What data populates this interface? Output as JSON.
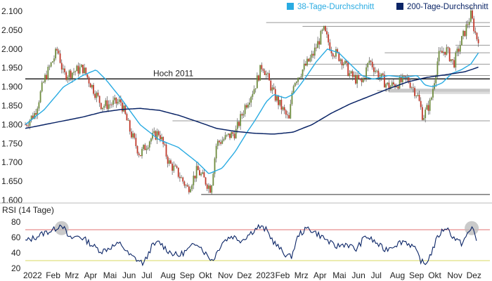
{
  "chart_data": [
    {
      "type": "candlestick-line",
      "panel": "price",
      "ylim": [
        1.6,
        2.1
      ],
      "y_ticks": [
        "1.600",
        "1.650",
        "1.700",
        "1.750",
        "1.800",
        "1.850",
        "1.900",
        "1.950",
        "2.000",
        "2.050",
        "2.100"
      ],
      "x_tick_labels": [
        "2022",
        "Feb",
        "Mrz",
        "Apr",
        "Mai",
        "Jun",
        "Jul",
        "Aug",
        "Sep",
        "Okt",
        "Nov",
        "Dez",
        "2023",
        "Feb",
        "Mrz",
        "Apr",
        "Mai",
        "Jun",
        "Jul",
        "Aug",
        "Sep",
        "Okt",
        "Nov",
        "Dez"
      ],
      "legend": [
        {
          "name": "38-Tage-Durchschnitt",
          "color": "#29abe2"
        },
        {
          "name": "200-Tage-Durchschnitt",
          "color": "#0a2466"
        }
      ],
      "annotation": "Hoch 2011",
      "hoch_2011_level": 1.921,
      "price_close_monthly": [
        {
          "m": 0,
          "v": 1.8
        },
        {
          "m": 0.5,
          "v": 1.83
        },
        {
          "m": 1,
          "v": 1.92
        },
        {
          "m": 1.7,
          "v": 2.0
        },
        {
          "m": 2,
          "v": 1.93
        },
        {
          "m": 3,
          "v": 1.95
        },
        {
          "m": 3.5,
          "v": 1.9
        },
        {
          "m": 4,
          "v": 1.85
        },
        {
          "m": 5,
          "v": 1.86
        },
        {
          "m": 5.5,
          "v": 1.78
        },
        {
          "m": 6,
          "v": 1.72
        },
        {
          "m": 6.5,
          "v": 1.76
        },
        {
          "m": 7,
          "v": 1.78
        },
        {
          "m": 7.5,
          "v": 1.7
        },
        {
          "m": 8,
          "v": 1.67
        },
        {
          "m": 8.5,
          "v": 1.63
        },
        {
          "m": 9,
          "v": 1.68
        },
        {
          "m": 9.7,
          "v": 1.63
        },
        {
          "m": 10,
          "v": 1.75
        },
        {
          "m": 11,
          "v": 1.78
        },
        {
          "m": 11.5,
          "v": 1.85
        },
        {
          "m": 12,
          "v": 1.9
        },
        {
          "m": 12.4,
          "v": 1.96
        },
        {
          "m": 13,
          "v": 1.88
        },
        {
          "m": 13.8,
          "v": 1.81
        },
        {
          "m": 14,
          "v": 1.91
        },
        {
          "m": 15,
          "v": 1.98
        },
        {
          "m": 15.6,
          "v": 2.05
        },
        {
          "m": 16,
          "v": 2.0
        },
        {
          "m": 16.6,
          "v": 1.97
        },
        {
          "m": 17,
          "v": 1.93
        },
        {
          "m": 17.6,
          "v": 1.91
        },
        {
          "m": 18,
          "v": 1.97
        },
        {
          "m": 18.5,
          "v": 1.93
        },
        {
          "m": 19,
          "v": 1.9
        },
        {
          "m": 20,
          "v": 1.92
        },
        {
          "m": 20.5,
          "v": 1.88
        },
        {
          "m": 20.8,
          "v": 1.82
        },
        {
          "m": 21.2,
          "v": 1.86
        },
        {
          "m": 21.6,
          "v": 1.98
        },
        {
          "m": 22,
          "v": 2.0
        },
        {
          "m": 22.4,
          "v": 1.96
        },
        {
          "m": 22.8,
          "v": 2.02
        },
        {
          "m": 23.3,
          "v": 2.09
        },
        {
          "m": 23.6,
          "v": 2.03
        }
      ],
      "ma38": [
        {
          "m": 0,
          "v": 1.8
        },
        {
          "m": 1,
          "v": 1.84
        },
        {
          "m": 2,
          "v": 1.9
        },
        {
          "m": 3,
          "v": 1.93
        },
        {
          "m": 3.7,
          "v": 1.945
        },
        {
          "m": 4.2,
          "v": 1.92
        },
        {
          "m": 5,
          "v": 1.87
        },
        {
          "m": 6,
          "v": 1.8
        },
        {
          "m": 7,
          "v": 1.76
        },
        {
          "m": 8,
          "v": 1.74
        },
        {
          "m": 8.5,
          "v": 1.72
        },
        {
          "m": 9,
          "v": 1.7
        },
        {
          "m": 9.6,
          "v": 1.67
        },
        {
          "m": 10.3,
          "v": 1.685
        },
        {
          "m": 11,
          "v": 1.73
        },
        {
          "m": 11.6,
          "v": 1.78
        },
        {
          "m": 12,
          "v": 1.81
        },
        {
          "m": 12.6,
          "v": 1.86
        },
        {
          "m": 13,
          "v": 1.88
        },
        {
          "m": 13.6,
          "v": 1.87
        },
        {
          "m": 14,
          "v": 1.88
        },
        {
          "m": 14.6,
          "v": 1.92
        },
        {
          "m": 15.2,
          "v": 1.965
        },
        {
          "m": 15.8,
          "v": 2.0
        },
        {
          "m": 16.4,
          "v": 1.99
        },
        {
          "m": 17,
          "v": 1.96
        },
        {
          "m": 17.6,
          "v": 1.93
        },
        {
          "m": 18.2,
          "v": 1.92
        },
        {
          "m": 19,
          "v": 1.93
        },
        {
          "m": 19.8,
          "v": 1.925
        },
        {
          "m": 20.5,
          "v": 1.93
        },
        {
          "m": 20.9,
          "v": 1.905
        },
        {
          "m": 21.3,
          "v": 1.9
        },
        {
          "m": 21.8,
          "v": 1.91
        },
        {
          "m": 22.3,
          "v": 1.935
        },
        {
          "m": 22.8,
          "v": 1.945
        },
        {
          "m": 23.3,
          "v": 1.96
        },
        {
          "m": 23.7,
          "v": 1.99
        }
      ],
      "ma200": [
        {
          "m": 0,
          "v": 1.79
        },
        {
          "m": 1,
          "v": 1.8
        },
        {
          "m": 2,
          "v": 1.81
        },
        {
          "m": 3,
          "v": 1.82
        },
        {
          "m": 4,
          "v": 1.833
        },
        {
          "m": 5,
          "v": 1.84
        },
        {
          "m": 6,
          "v": 1.843
        },
        {
          "m": 7,
          "v": 1.838
        },
        {
          "m": 8,
          "v": 1.825
        },
        {
          "m": 9,
          "v": 1.808
        },
        {
          "m": 10,
          "v": 1.79
        },
        {
          "m": 11,
          "v": 1.782
        },
        {
          "m": 12,
          "v": 1.777
        },
        {
          "m": 13,
          "v": 1.775
        },
        {
          "m": 14,
          "v": 1.78
        },
        {
          "m": 15,
          "v": 1.8
        },
        {
          "m": 16,
          "v": 1.83
        },
        {
          "m": 17,
          "v": 1.855
        },
        {
          "m": 18,
          "v": 1.875
        },
        {
          "m": 19,
          "v": 1.895
        },
        {
          "m": 20,
          "v": 1.913
        },
        {
          "m": 21,
          "v": 1.925
        },
        {
          "m": 22,
          "v": 1.932
        },
        {
          "m": 23,
          "v": 1.94
        },
        {
          "m": 23.7,
          "v": 1.952
        }
      ],
      "resistance_levels": [
        2.07,
        2.06,
        2.01,
        1.99,
        1.96,
        1.93,
        1.89,
        1.81,
        1.615
      ]
    },
    {
      "type": "line",
      "panel": "rsi",
      "title": "RSI (14 Tage)",
      "ylim": [
        20,
        80
      ],
      "y_ticks": [
        "80",
        "60",
        "40",
        "20"
      ],
      "overbought": 70,
      "oversold": 30,
      "series": [
        {
          "values_monthly": [
            {
              "m": 0,
              "v": 55
            },
            {
              "m": 0.5,
              "v": 60
            },
            {
              "m": 1,
              "v": 66
            },
            {
              "m": 1.5,
              "v": 70
            },
            {
              "m": 1.9,
              "v": 78
            },
            {
              "m": 2.3,
              "v": 58
            },
            {
              "m": 2.8,
              "v": 62
            },
            {
              "m": 3.2,
              "v": 56
            },
            {
              "m": 3.6,
              "v": 48
            },
            {
              "m": 4,
              "v": 42
            },
            {
              "m": 4.5,
              "v": 48
            },
            {
              "m": 5,
              "v": 52
            },
            {
              "m": 5.4,
              "v": 38
            },
            {
              "m": 5.8,
              "v": 32
            },
            {
              "m": 6.2,
              "v": 26
            },
            {
              "m": 6.6,
              "v": 48
            },
            {
              "m": 7,
              "v": 54
            },
            {
              "m": 7.5,
              "v": 42
            },
            {
              "m": 8,
              "v": 36
            },
            {
              "m": 8.5,
              "v": 44
            },
            {
              "m": 9,
              "v": 54
            },
            {
              "m": 9.4,
              "v": 40
            },
            {
              "m": 9.8,
              "v": 30
            },
            {
              "m": 10.3,
              "v": 54
            },
            {
              "m": 10.8,
              "v": 62
            },
            {
              "m": 11.3,
              "v": 56
            },
            {
              "m": 11.8,
              "v": 66
            },
            {
              "m": 12.2,
              "v": 74
            },
            {
              "m": 12.6,
              "v": 70
            },
            {
              "m": 13,
              "v": 54
            },
            {
              "m": 13.5,
              "v": 40
            },
            {
              "m": 13.9,
              "v": 34
            },
            {
              "m": 14.3,
              "v": 64
            },
            {
              "m": 14.8,
              "v": 72
            },
            {
              "m": 15.2,
              "v": 66
            },
            {
              "m": 15.7,
              "v": 58
            },
            {
              "m": 16.2,
              "v": 48
            },
            {
              "m": 16.8,
              "v": 52
            },
            {
              "m": 17.3,
              "v": 44
            },
            {
              "m": 17.8,
              "v": 62
            },
            {
              "m": 18.3,
              "v": 54
            },
            {
              "m": 18.8,
              "v": 44
            },
            {
              "m": 19.3,
              "v": 50
            },
            {
              "m": 19.8,
              "v": 56
            },
            {
              "m": 20.3,
              "v": 48
            },
            {
              "m": 20.7,
              "v": 30
            },
            {
              "m": 20.9,
              "v": 24
            },
            {
              "m": 21.2,
              "v": 38
            },
            {
              "m": 21.6,
              "v": 62
            },
            {
              "m": 22,
              "v": 74
            },
            {
              "m": 22.4,
              "v": 60
            },
            {
              "m": 22.8,
              "v": 52
            },
            {
              "m": 23.2,
              "v": 66
            },
            {
              "m": 23.4,
              "v": 74
            },
            {
              "m": 23.6,
              "v": 58
            }
          ]
        }
      ]
    }
  ]
}
